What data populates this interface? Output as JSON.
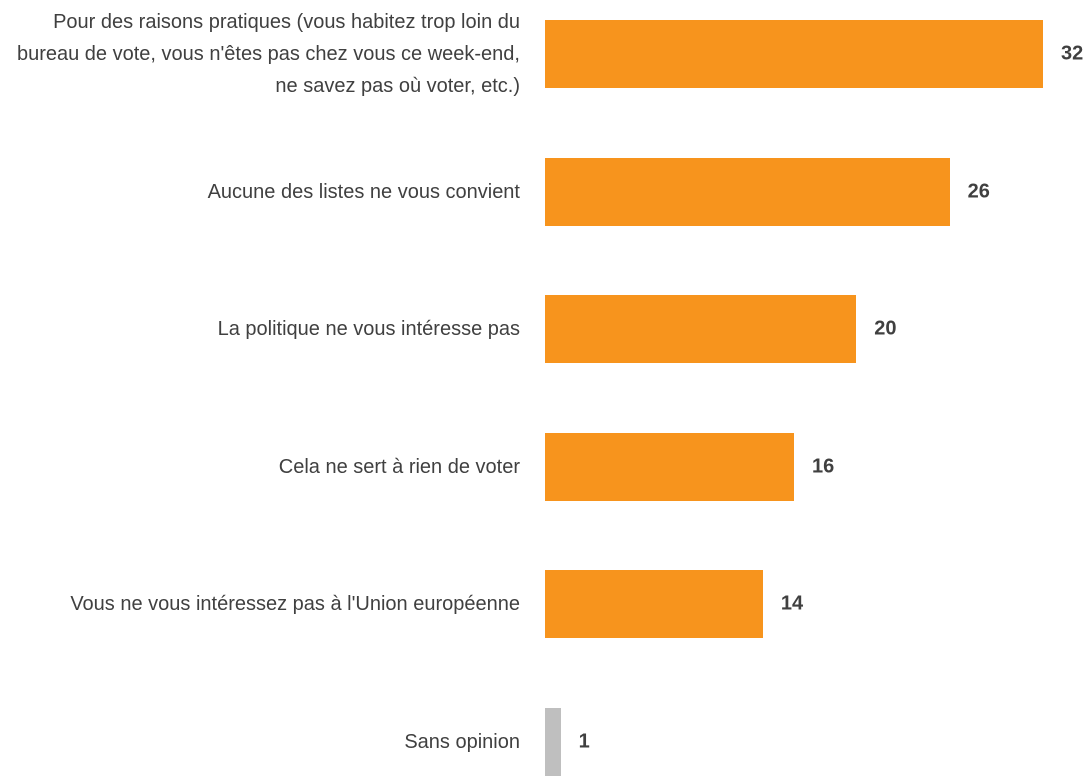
{
  "chart_data": {
    "type": "barh",
    "categories": [
      "Pour des raisons pratiques (vous habitez trop loin du bureau de vote, vous n'êtes pas chez vous ce week-end, ne savez pas où voter, etc.)",
      "Aucune des listes ne vous convient",
      "La politique ne vous intéresse pas",
      "Cela ne sert à rien de voter",
      "Vous ne vous intéressez pas à l'Union européenne",
      "Sans opinion"
    ],
    "values": [
      32,
      26,
      20,
      16,
      14,
      1
    ],
    "colors": [
      "#f7941d",
      "#f7941d",
      "#f7941d",
      "#f7941d",
      "#f7941d",
      "#bfbfbf"
    ]
  }
}
